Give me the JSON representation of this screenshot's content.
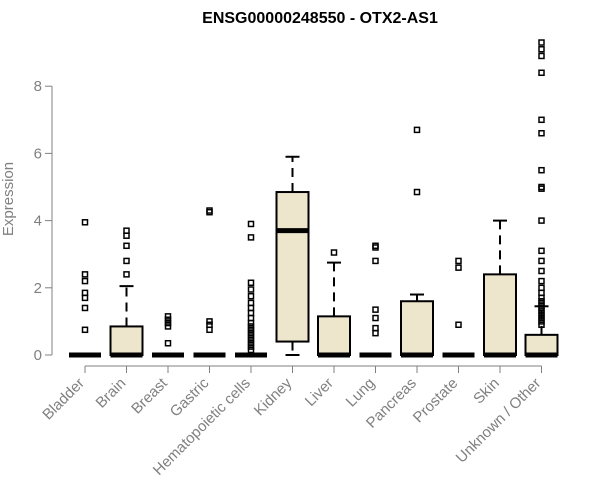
{
  "chart_data": {
    "type": "boxplot",
    "title": "ENSG00000248550 - OTX2-AS1",
    "xlabel": "",
    "ylabel": "Expression",
    "ylim": [
      -0.3,
      9.4
    ],
    "yticks": [
      0,
      2,
      4,
      6,
      8
    ],
    "grid": false,
    "colors": {
      "box_fill": "#ede6cd",
      "stroke": "#000000",
      "axis": "#808080",
      "title": "#000000"
    },
    "categories": [
      "Bladder",
      "Brain",
      "Breast",
      "Gastric",
      "Hematopoietic cells",
      "Kidney",
      "Liver",
      "Lung",
      "Pancreas",
      "Prostate",
      "Skin",
      "Unknown / Other"
    ],
    "boxes": [
      {
        "q1": 0,
        "median": 0,
        "q3": 0,
        "whisker_low": 0,
        "whisker_high": 0,
        "outliers": [
          3.95,
          2.4,
          2.2,
          1.85,
          1.7,
          1.4,
          0.75
        ]
      },
      {
        "q1": 0,
        "median": 0,
        "q3": 0.85,
        "whisker_low": 0,
        "whisker_high": 2.05,
        "outliers": [
          3.7,
          3.55,
          3.25,
          2.8,
          2.4
        ]
      },
      {
        "q1": 0,
        "median": 0,
        "q3": 0,
        "whisker_low": 0,
        "whisker_high": 0,
        "outliers": [
          1.15,
          1.05,
          0.95,
          0.85,
          0.35
        ]
      },
      {
        "q1": 0,
        "median": 0,
        "q3": 0,
        "whisker_low": 0,
        "whisker_high": 0,
        "outliers": [
          4.3,
          4.25,
          1.0,
          0.9,
          0.75
        ]
      },
      {
        "q1": 0,
        "median": 0,
        "q3": 0,
        "whisker_low": 0,
        "whisker_high": 0,
        "outliers": [
          3.9,
          3.5,
          2.15,
          1.95,
          1.75,
          1.55,
          1.4,
          1.25,
          1.1,
          0.95,
          0.85,
          0.75,
          0.65,
          0.55,
          0.45,
          0.35,
          0.25,
          0.15
        ]
      },
      {
        "q1": 0.4,
        "median": 3.7,
        "q3": 4.85,
        "whisker_low": 0,
        "whisker_high": 5.9,
        "outliers": []
      },
      {
        "q1": 0,
        "median": 0,
        "q3": 1.15,
        "whisker_low": 0,
        "whisker_high": 2.75,
        "outliers": [
          3.05
        ]
      },
      {
        "q1": 0,
        "median": 0,
        "q3": 0,
        "whisker_low": 0,
        "whisker_high": 0,
        "outliers": [
          3.25,
          3.2,
          2.8,
          1.35,
          1.1,
          0.8,
          0.65
        ]
      },
      {
        "q1": 0,
        "median": 0,
        "q3": 1.6,
        "whisker_low": 0,
        "whisker_high": 1.8,
        "outliers": [
          6.7,
          4.85
        ]
      },
      {
        "q1": 0,
        "median": 0,
        "q3": 0,
        "whisker_low": 0,
        "whisker_high": 0,
        "outliers": [
          2.8,
          2.6,
          0.9
        ]
      },
      {
        "q1": 0,
        "median": 0,
        "q3": 2.4,
        "whisker_low": 0,
        "whisker_high": 4.0,
        "outliers": []
      },
      {
        "q1": 0,
        "median": 0,
        "q3": 0.6,
        "whisker_low": 0,
        "whisker_high": 1.45,
        "outliers": [
          9.3,
          9.1,
          8.9,
          8.4,
          7.0,
          6.6,
          5.5,
          5.0,
          4.95,
          4.0,
          3.1,
          2.8,
          2.5,
          2.2,
          2.0,
          1.85,
          1.7,
          1.6,
          1.5,
          1.4,
          1.3,
          1.2,
          1.1,
          1.0,
          0.9
        ]
      }
    ]
  }
}
